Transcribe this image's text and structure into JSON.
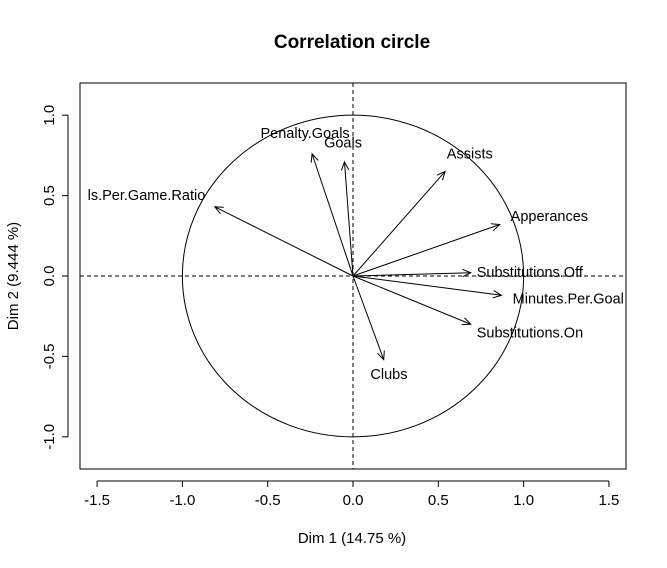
{
  "chart_data": {
    "type": "scatter",
    "subtype": "correlation-circle",
    "title": "Correlation circle",
    "xlabel": "Dim 1 (14.75 %)",
    "ylabel": "Dim 2 (9.444 %)",
    "xlim": [
      -1.6,
      1.6
    ],
    "ylim": [
      -1.2,
      1.2
    ],
    "xticks": [
      -1.5,
      -1.0,
      -0.5,
      0.0,
      0.5,
      1.0,
      1.5
    ],
    "xtick_labels": [
      "-1.5",
      "-1.0",
      "-0.5",
      "0.0",
      "0.5",
      "1.0",
      "1.5"
    ],
    "yticks": [
      -1.0,
      -0.5,
      0.0,
      0.5,
      1.0
    ],
    "ytick_labels": [
      "-1.0",
      "-0.5",
      "0.0",
      "0.5",
      "1.0"
    ],
    "grid": false,
    "unit_circle": true,
    "reference_lines": "dashed lines at x=0 and y=0",
    "variables": [
      {
        "name": "Penalty.Goals",
        "x": -0.24,
        "y": 0.76
      },
      {
        "name": "Goals",
        "x": -0.05,
        "y": 0.71
      },
      {
        "name": "Assists",
        "x": 0.54,
        "y": 0.65
      },
      {
        "name": "ls.Per.Game.Ratio",
        "x": -0.81,
        "y": 0.43
      },
      {
        "name": "Apperances",
        "x": 0.86,
        "y": 0.32
      },
      {
        "name": "Substitutions.Off",
        "x": 0.69,
        "y": 0.02
      },
      {
        "name": "Minutes.Per.Goal",
        "x": 0.87,
        "y": -0.12
      },
      {
        "name": "Substitutions.On",
        "x": 0.69,
        "y": -0.3
      },
      {
        "name": "Clubs",
        "x": 0.18,
        "y": -0.52
      }
    ]
  }
}
